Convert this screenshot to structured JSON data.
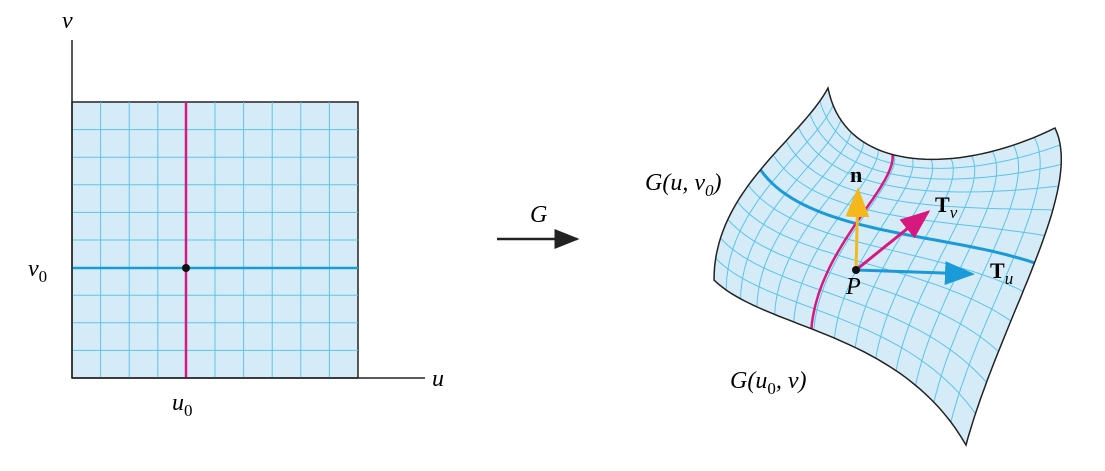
{
  "domain_labels": {
    "v_axis": "v",
    "u_axis": "u",
    "v0": {
      "base": "v",
      "sub": "0"
    },
    "u0": {
      "base": "u",
      "sub": "0"
    }
  },
  "map_label": "G",
  "surface_labels": {
    "g_u_v0": {
      "before": "G(u, v",
      "sub": "0",
      "after": ")"
    },
    "g_u0_v": {
      "before": "G(u",
      "sub": "0",
      "after": ", v)"
    },
    "normal": "n",
    "tv": {
      "base": "T",
      "sub": "v"
    },
    "tu": {
      "base": "T",
      "sub": "u"
    },
    "point": "P"
  }
}
